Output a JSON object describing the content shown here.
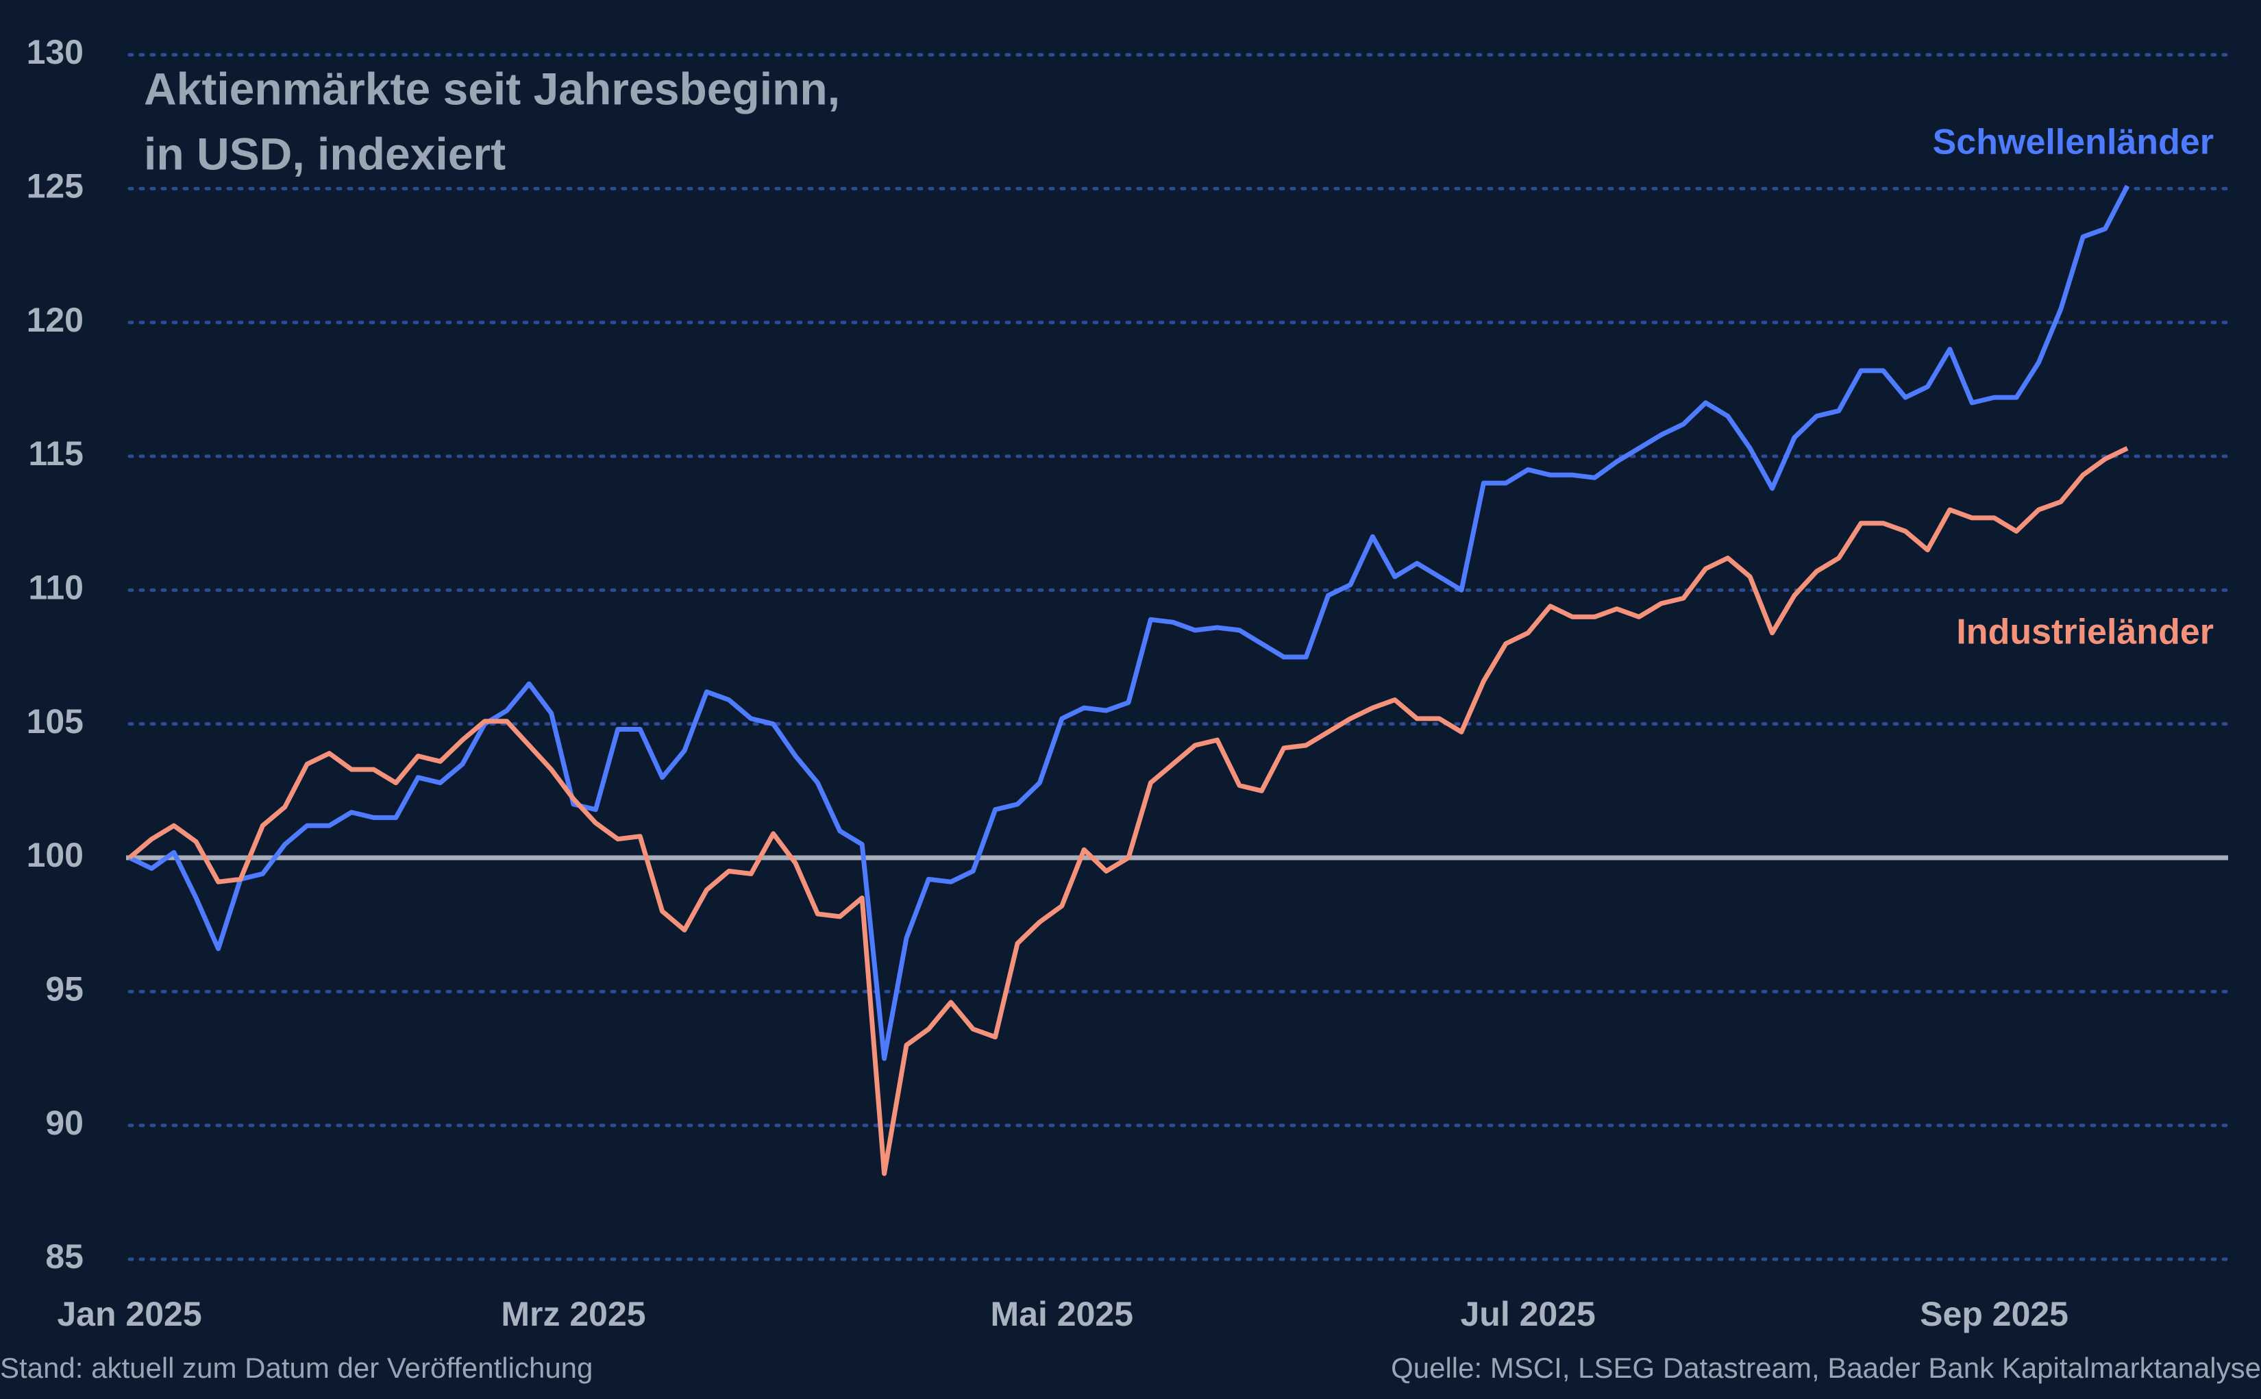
{
  "chart_data": {
    "type": "line",
    "title_lines": [
      "Aktienmärkte seit Jahresbeginn,",
      "in USD, indexiert"
    ],
    "footnote": "Stand: aktuell zum Datum der Veröffentlichung",
    "source": "Quelle: MSCI, LSEG Datastream, Baader Bank Kapitalmarktanalyse",
    "categories": [
      "Jan 2025",
      null,
      null,
      null,
      null,
      null,
      null,
      null,
      null,
      null,
      null,
      null,
      null,
      null,
      null,
      null,
      null,
      null,
      null,
      null,
      "Mrz 2025",
      null,
      null,
      null,
      null,
      null,
      null,
      null,
      null,
      null,
      null,
      null,
      null,
      null,
      null,
      null,
      null,
      null,
      null,
      null,
      null,
      null,
      "Mai 2025",
      null,
      null,
      null,
      null,
      null,
      null,
      null,
      null,
      null,
      null,
      null,
      null,
      null,
      null,
      null,
      null,
      null,
      null,
      null,
      null,
      "Jul 2025",
      null,
      null,
      null,
      null,
      null,
      null,
      null,
      null,
      null,
      null,
      null,
      null,
      null,
      null,
      null,
      null,
      null,
      null,
      null,
      null,
      "Sep 2025",
      null,
      null,
      null,
      null,
      null,
      null
    ],
    "series": [
      {
        "name": "Schwellenländer",
        "color": "#4f7bff",
        "values": [
          100,
          99.6,
          100.2,
          98.5,
          96.6,
          99.2,
          99.4,
          100.5,
          101.2,
          101.2,
          101.7,
          101.5,
          101.5,
          103,
          102.8,
          103.5,
          105,
          105.5,
          106.5,
          105.4,
          102,
          101.8,
          104.8,
          104.8,
          103,
          104,
          106.2,
          105.9,
          105.2,
          105,
          103.8,
          102.8,
          101,
          100.5,
          92.5,
          97,
          99.2,
          99.1,
          99.5,
          101.8,
          102,
          102.8,
          105.2,
          105.6,
          105.5,
          105.8,
          108.9,
          108.8,
          108.5,
          108.6,
          108.5,
          108,
          107.5,
          107.5,
          109.8,
          110.2,
          112,
          110.5,
          111,
          110.5,
          110,
          114,
          114,
          114.5,
          114.3,
          114.3,
          114.2,
          114.8,
          115.3,
          115.8,
          116.2,
          117,
          116.5,
          115.3,
          113.8,
          115.7,
          116.5,
          116.7,
          118.2,
          118.2,
          117.2,
          117.6,
          119,
          117,
          117.2,
          117.2,
          118.5,
          120.5,
          123.2,
          123.5,
          125.1
        ]
      },
      {
        "name": "Industrieländer",
        "color": "#f4927b",
        "values": [
          100,
          100.7,
          101.2,
          100.6,
          99.1,
          99.2,
          101.2,
          101.9,
          103.5,
          103.9,
          103.3,
          103.3,
          102.8,
          103.8,
          103.6,
          104.4,
          105.1,
          105.1,
          104.2,
          103.3,
          102.2,
          101.3,
          100.7,
          100.8,
          98,
          97.3,
          98.8,
          99.5,
          99.4,
          100.9,
          99.8,
          97.9,
          97.8,
          98.5,
          88.2,
          93,
          93.6,
          94.6,
          93.6,
          93.3,
          96.8,
          97.6,
          98.2,
          100.3,
          99.5,
          100,
          102.8,
          103.5,
          104.2,
          104.4,
          102.7,
          102.5,
          104.1,
          104.2,
          104.7,
          105.2,
          105.6,
          105.9,
          105.2,
          105.2,
          104.7,
          106.6,
          108,
          108.4,
          109.4,
          109,
          109,
          109.3,
          109,
          109.5,
          109.7,
          110.8,
          111.2,
          110.5,
          108.4,
          109.8,
          110.7,
          111.2,
          112.5,
          112.5,
          112.2,
          111.5,
          113,
          112.7,
          112.7,
          112.2,
          113,
          113.3,
          114.3,
          114.9,
          115.3
        ]
      }
    ],
    "baseline": 100,
    "ylim": [
      85,
      130
    ],
    "yticks": [
      85,
      90,
      95,
      100,
      105,
      110,
      115,
      120,
      125,
      130
    ],
    "grid": true
  }
}
